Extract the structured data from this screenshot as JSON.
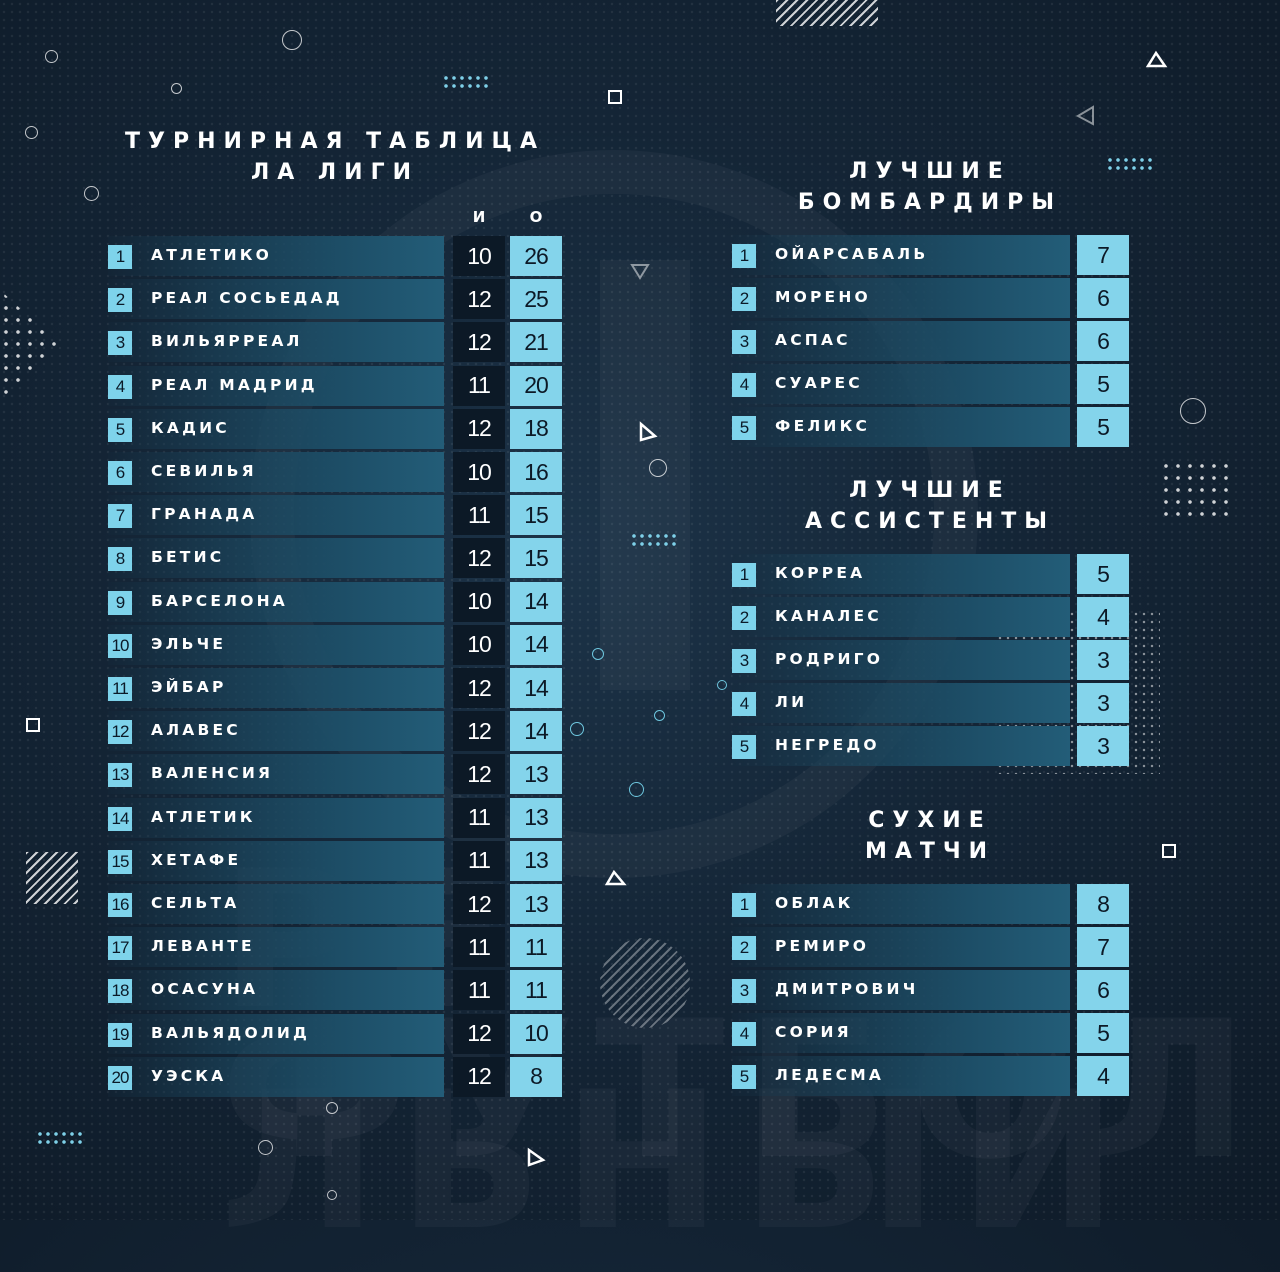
{
  "standings": {
    "title_line1": "ТУРНИРНАЯ ТАБЛИЦА",
    "title_line2": "ЛА ЛИГИ",
    "col_games": "И",
    "col_points": "О",
    "rows": [
      {
        "pos": "1",
        "team": "АТЛЕТИКО",
        "games": "10",
        "points": "26"
      },
      {
        "pos": "2",
        "team": "РЕАЛ СОСЬЕДАД",
        "games": "12",
        "points": "25"
      },
      {
        "pos": "3",
        "team": "ВИЛЬЯРРЕАЛ",
        "games": "12",
        "points": "21"
      },
      {
        "pos": "4",
        "team": "РЕАЛ МАДРИД",
        "games": "11",
        "points": "20"
      },
      {
        "pos": "5",
        "team": "КАДИС",
        "games": "12",
        "points": "18"
      },
      {
        "pos": "6",
        "team": "СЕВИЛЬЯ",
        "games": "10",
        "points": "16"
      },
      {
        "pos": "7",
        "team": "ГРАНАДА",
        "games": "11",
        "points": "15"
      },
      {
        "pos": "8",
        "team": "БЕТИС",
        "games": "12",
        "points": "15"
      },
      {
        "pos": "9",
        "team": "БАРСЕЛОНА",
        "games": "10",
        "points": "14"
      },
      {
        "pos": "10",
        "team": "ЭЛЬЧЕ",
        "games": "10",
        "points": "14"
      },
      {
        "pos": "11",
        "team": "ЭЙБАР",
        "games": "12",
        "points": "14"
      },
      {
        "pos": "12",
        "team": "АЛАВЕС",
        "games": "12",
        "points": "14"
      },
      {
        "pos": "13",
        "team": "ВАЛЕНСИЯ",
        "games": "12",
        "points": "13"
      },
      {
        "pos": "14",
        "team": "АТЛЕТИК",
        "games": "11",
        "points": "13"
      },
      {
        "pos": "15",
        "team": "ХЕТАФЕ",
        "games": "11",
        "points": "13"
      },
      {
        "pos": "16",
        "team": "СЕЛЬТА",
        "games": "12",
        "points": "13"
      },
      {
        "pos": "17",
        "team": "ЛЕВАНТЕ",
        "games": "11",
        "points": "11"
      },
      {
        "pos": "18",
        "team": "ОСАСУНА",
        "games": "11",
        "points": "11"
      },
      {
        "pos": "19",
        "team": "ВАЛЬЯДОЛИД",
        "games": "12",
        "points": "10"
      },
      {
        "pos": "20",
        "team": "УЭСКА",
        "games": "12",
        "points": "8"
      }
    ]
  },
  "scorers": {
    "title_line1": "ЛУЧШИЕ",
    "title_line2": "БОМБАРДИРЫ",
    "rows": [
      {
        "pos": "1",
        "name": "ОЙАРСАБАЛЬ",
        "value": "7"
      },
      {
        "pos": "2",
        "name": "МОРЕНО",
        "value": "6"
      },
      {
        "pos": "3",
        "name": "АСПАС",
        "value": "6"
      },
      {
        "pos": "4",
        "name": "СУАРЕС",
        "value": "5"
      },
      {
        "pos": "5",
        "name": "ФЕЛИКС",
        "value": "5"
      }
    ]
  },
  "assists": {
    "title_line1": "ЛУЧШИЕ",
    "title_line2": "АССИСТЕНТЫ",
    "rows": [
      {
        "pos": "1",
        "name": "КОРРЕА",
        "value": "5"
      },
      {
        "pos": "2",
        "name": "КАНАЛЕС",
        "value": "4"
      },
      {
        "pos": "3",
        "name": "РОДРИГО",
        "value": "3"
      },
      {
        "pos": "4",
        "name": "ЛИ",
        "value": "3"
      },
      {
        "pos": "5",
        "name": "НЕГРЕДО",
        "value": "3"
      }
    ]
  },
  "clean_sheets": {
    "title_line1": "СУХИЕ",
    "title_line2": "МАТЧИ",
    "rows": [
      {
        "pos": "1",
        "name": "ОБЛАК",
        "value": "8"
      },
      {
        "pos": "2",
        "name": "РЕМИРО",
        "value": "7"
      },
      {
        "pos": "3",
        "name": "ДМИТРОВИЧ",
        "value": "6"
      },
      {
        "pos": "4",
        "name": "СОРИЯ",
        "value": "5"
      },
      {
        "pos": "5",
        "name": "ЛЕДЕСМА",
        "value": "4"
      }
    ]
  },
  "watermark": "РЕАЛЬНЫЙ ФУТБОЛ",
  "colors": {
    "accent": "#84d4eb",
    "cell_dark": "#0c1926",
    "bar": "#1d4e67"
  }
}
